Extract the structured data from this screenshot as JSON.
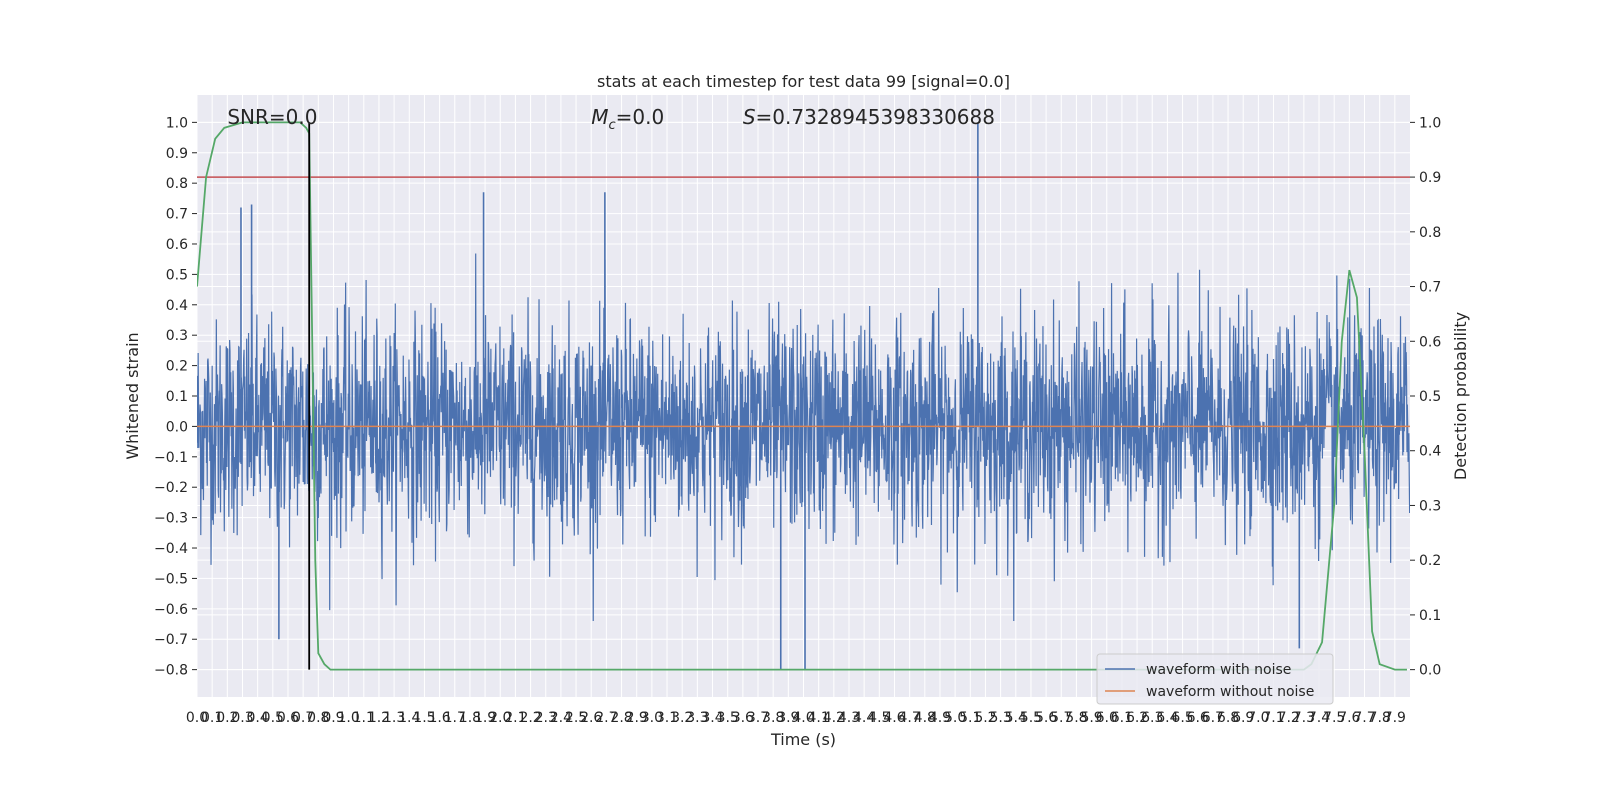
{
  "chart_data": {
    "type": "line",
    "title": "stats at each timestep for test data 99 [signal=0.0]",
    "xlabel": "Time (s)",
    "ylabel": "Whitened strain",
    "y2label": "Detection probability",
    "xlim": [
      0.0,
      8.0
    ],
    "ylim": [
      -0.89,
      1.09
    ],
    "y2lim": [
      -0.05,
      1.05
    ],
    "x_ticks": [
      0.0,
      0.1,
      0.2,
      0.3,
      0.4,
      0.5,
      0.6,
      0.7,
      0.8,
      0.9,
      1.0,
      1.1,
      1.2,
      1.3,
      1.4,
      1.5,
      1.6,
      1.7,
      1.8,
      1.9,
      2.0,
      2.1,
      2.2,
      2.3,
      2.4,
      2.5,
      2.6,
      2.7,
      2.8,
      2.9,
      3.0,
      3.1,
      3.2,
      3.3,
      3.4,
      3.5,
      3.6,
      3.7,
      3.8,
      3.9,
      4.0,
      4.1,
      4.2,
      4.3,
      4.4,
      4.5,
      4.6,
      4.7,
      4.8,
      4.9,
      5.0,
      5.1,
      5.2,
      5.3,
      5.4,
      5.5,
      5.6,
      5.7,
      5.8,
      5.9,
      6.0,
      6.1,
      6.2,
      6.3,
      6.4,
      6.5,
      6.6,
      6.7,
      6.8,
      6.9,
      7.0,
      7.1,
      7.2,
      7.3,
      7.4,
      7.5,
      7.6,
      7.7,
      7.8,
      7.9
    ],
    "y_ticks": [
      -0.8,
      -0.7,
      -0.6,
      -0.5,
      -0.4,
      -0.3,
      -0.2,
      -0.1,
      0.0,
      0.1,
      0.2,
      0.3,
      0.4,
      0.5,
      0.6,
      0.7,
      0.8,
      0.9,
      1.0
    ],
    "y2_ticks": [
      0.0,
      0.1,
      0.2,
      0.3,
      0.4,
      0.5,
      0.6,
      0.7,
      0.8,
      0.9,
      1.0
    ],
    "grid": true,
    "legend": {
      "placement": "lower-right",
      "entries": [
        "waveform with noise",
        "waveform without noise"
      ]
    },
    "annotations": {
      "snr": "SNR=0.0",
      "mc_symbol": "M",
      "mc_sub": "c",
      "mc_value": "=0.0",
      "s_symbol": "S",
      "s_value": "=0.7328945398330688"
    },
    "series": [
      {
        "name": "waveform with noise",
        "color": "#4c72b0",
        "kind": "noise",
        "envelope": 0.28,
        "peaks": [
          {
            "x": 5.15,
            "y": 1.0
          },
          {
            "x": 3.85,
            "y": -0.8
          },
          {
            "x": 4.01,
            "y": -0.8
          },
          {
            "x": 0.29,
            "y": 0.72
          },
          {
            "x": 0.36,
            "y": 0.73
          },
          {
            "x": 1.89,
            "y": 0.77
          },
          {
            "x": 2.69,
            "y": 0.77
          },
          {
            "x": 0.54,
            "y": -0.7
          },
          {
            "x": 7.27,
            "y": -0.73
          }
        ]
      },
      {
        "name": "waveform without noise",
        "color": "#dd8452",
        "values_const": 0.0
      },
      {
        "name": "detection probability",
        "color": "#55a868",
        "axis": "y2",
        "x": [
          0.0,
          0.06,
          0.12,
          0.18,
          0.24,
          0.3,
          0.38,
          0.46,
          0.54,
          0.62,
          0.68,
          0.72,
          0.74,
          0.76,
          0.78,
          0.8,
          0.84,
          0.88,
          0.92,
          1.0,
          2.0,
          3.0,
          4.0,
          5.0,
          6.0,
          7.0,
          7.2,
          7.3,
          7.35,
          7.42,
          7.5,
          7.55,
          7.6,
          7.65,
          7.7,
          7.75,
          7.8,
          7.9,
          7.98
        ],
        "y": [
          0.7,
          0.9,
          0.97,
          0.99,
          0.995,
          1.0,
          1.0,
          1.0,
          1.0,
          1.0,
          1.0,
          0.99,
          0.98,
          0.6,
          0.2,
          0.03,
          0.01,
          0.0,
          0.0,
          0.0,
          0.0,
          0.0,
          0.0,
          0.0,
          0.0,
          0.0,
          0.0,
          0.0,
          0.01,
          0.05,
          0.3,
          0.6,
          0.73,
          0.68,
          0.4,
          0.07,
          0.01,
          0.0,
          0.0
        ]
      },
      {
        "name": "threshold",
        "color": "#c44e52",
        "axis": "y2",
        "values_const": 0.9
      },
      {
        "name": "event marker",
        "color": "#000000",
        "x": 0.74
      }
    ]
  }
}
